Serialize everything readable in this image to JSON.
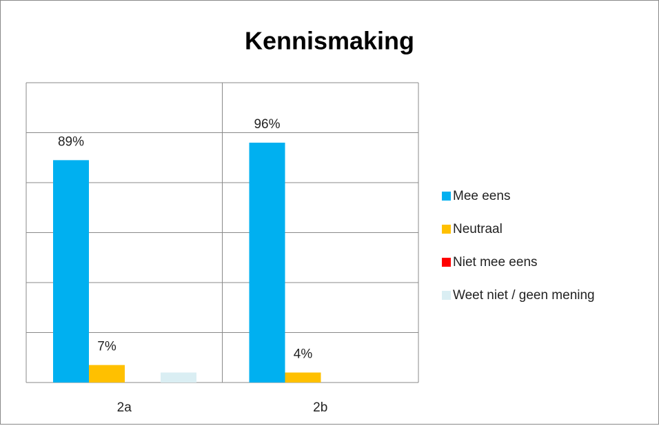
{
  "chart_data": {
    "type": "bar",
    "title": "Kennismaking",
    "categories": [
      "2a",
      "2b"
    ],
    "series": [
      {
        "name": "Mee eens",
        "color": "#00b0f0",
        "values": [
          89,
          96
        ],
        "value_labels": [
          "89%",
          "96%"
        ]
      },
      {
        "name": "Neutraal",
        "color": "#ffc000",
        "values": [
          7,
          4
        ],
        "value_labels": [
          "7%",
          "4%"
        ]
      },
      {
        "name": "Niet mee eens",
        "color": "#ff0000",
        "values": [
          0,
          0
        ],
        "value_labels": [
          null,
          null
        ]
      },
      {
        "name": "Weet niet / geen mening",
        "color": "#daeef3",
        "values": [
          4,
          0
        ],
        "value_labels": [
          null,
          null
        ]
      }
    ],
    "ylim": [
      0,
      120
    ],
    "yticks": [
      0,
      20,
      40,
      60,
      80,
      100,
      120
    ],
    "grid": true,
    "legend": "right"
  }
}
